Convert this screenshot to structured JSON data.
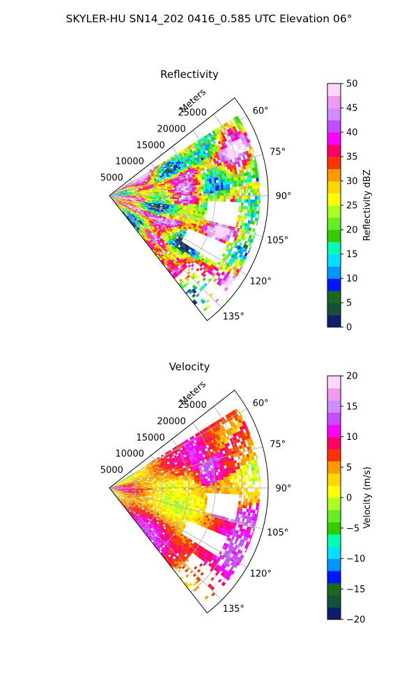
{
  "title": "SKYLER-HU  SN14_202  0416_0.585 UTC Elevation 06°",
  "chart_data": [
    {
      "type": "polar-sector",
      "title": "Reflectivity",
      "radial_label": "Meters",
      "radial_ticks": [
        "5000",
        "10000",
        "15000",
        "20000",
        "25000"
      ],
      "radial_tick_values": [
        5000,
        10000,
        15000,
        20000,
        25000
      ],
      "r_max": 30000,
      "angle_ticks": [
        "60°",
        "75°",
        "90°",
        "105°",
        "120°",
        "135°"
      ],
      "angle_tick_values": [
        60,
        75,
        90,
        105,
        120,
        135
      ],
      "theta_range_deg": [
        52,
        142
      ],
      "grid": true,
      "colorbar": {
        "label": "Reflectivity dBZ",
        "min": 0,
        "max": 50,
        "ticks": [
          "0",
          "5",
          "10",
          "15",
          "20",
          "25",
          "30",
          "35",
          "40",
          "45",
          "50"
        ],
        "tick_values": [
          0,
          5,
          10,
          15,
          20,
          25,
          30,
          35,
          40,
          45,
          50
        ],
        "colors": [
          "#0b1f6b",
          "#15503a",
          "#1a6a1e",
          "#0016ff",
          "#0096ff",
          "#00e0ff",
          "#00ffb0",
          "#33cc00",
          "#66ee22",
          "#aaff22",
          "#ffff00",
          "#ffd700",
          "#ff9900",
          "#ff3300",
          "#ff0066",
          "#ff00ff",
          "#c44dff",
          "#d38cff",
          "#f09bf0",
          "#ffd6ff"
        ]
      }
    },
    {
      "type": "polar-sector",
      "title": "Velocity",
      "radial_label": "Meters",
      "radial_ticks": [
        "5000",
        "10000",
        "15000",
        "20000",
        "25000"
      ],
      "radial_tick_values": [
        5000,
        10000,
        15000,
        20000,
        25000
      ],
      "r_max": 30000,
      "angle_ticks": [
        "60°",
        "75°",
        "90°",
        "105°",
        "120°",
        "135°"
      ],
      "angle_tick_values": [
        60,
        75,
        90,
        105,
        120,
        135
      ],
      "theta_range_deg": [
        52,
        142
      ],
      "grid": true,
      "colorbar": {
        "label": "Velocity (m/s)",
        "min": -20,
        "max": 20,
        "ticks": [
          "−20",
          "−15",
          "−10",
          "−5",
          "0",
          "5",
          "10",
          "15",
          "20"
        ],
        "tick_values": [
          -20,
          -15,
          -10,
          -5,
          0,
          5,
          10,
          15,
          20
        ],
        "colors": [
          "#0b1f6b",
          "#15503a",
          "#1a6a1e",
          "#0016ff",
          "#0096ff",
          "#00e0ff",
          "#00ffb0",
          "#33cc00",
          "#66ee22",
          "#aaff22",
          "#ffff00",
          "#ffd700",
          "#ff9900",
          "#ff3300",
          "#ff0066",
          "#ff00ff",
          "#c44dff",
          "#d38cff",
          "#f09bf0",
          "#ffd6ff"
        ]
      }
    }
  ]
}
